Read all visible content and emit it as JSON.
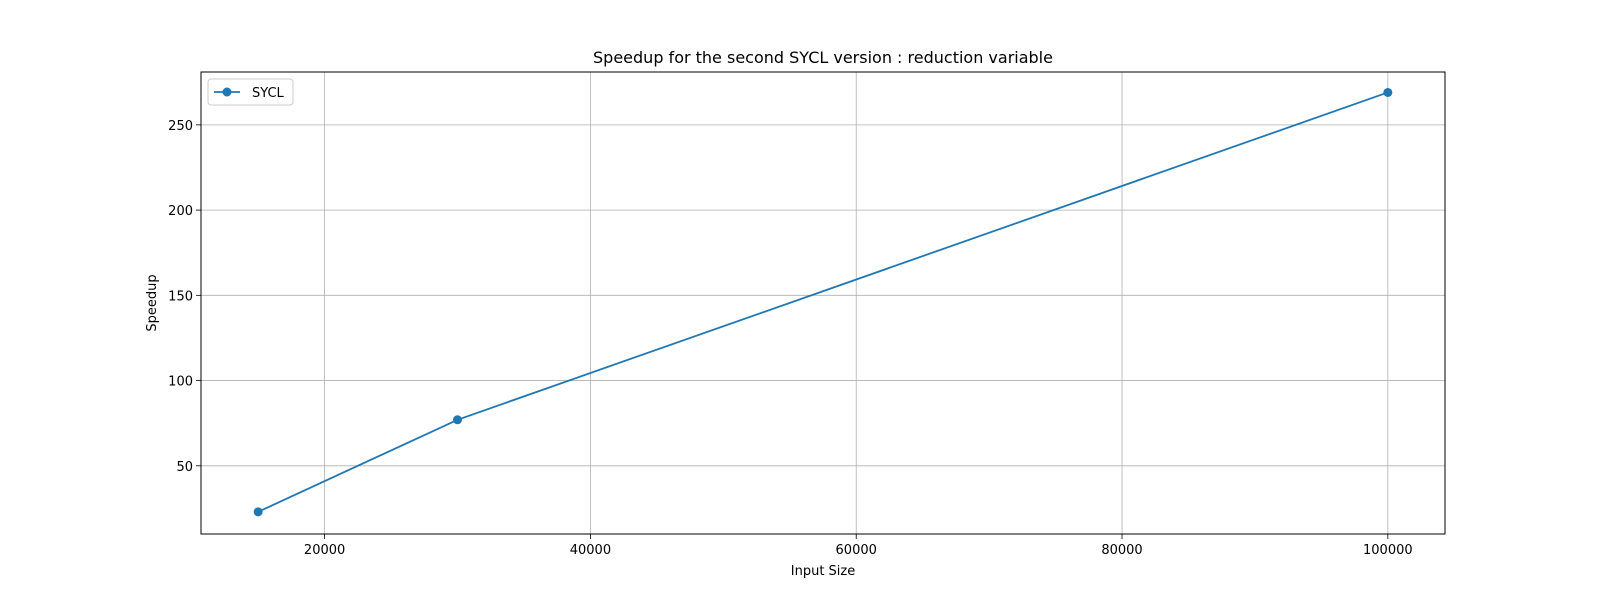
{
  "chart_data": {
    "type": "line",
    "title": "Speedup for the second SYCL version : reduction variable",
    "xlabel": "Input Size",
    "ylabel": "Speedup",
    "xlim": [
      10700,
      104300
    ],
    "ylim": [
      10,
      281
    ],
    "xticks": [
      20000,
      40000,
      60000,
      80000,
      100000
    ],
    "xtick_labels": [
      "20000",
      "40000",
      "60000",
      "80000",
      "100000"
    ],
    "yticks": [
      50,
      100,
      150,
      200,
      250
    ],
    "ytick_labels": [
      "50",
      "100",
      "150",
      "200",
      "250"
    ],
    "grid": true,
    "legend_position": "upper left",
    "series": [
      {
        "name": "SYCL",
        "color": "#1f77b4",
        "marker": "circle",
        "x": [
          15000,
          30000,
          100000
        ],
        "y": [
          23,
          77,
          269
        ]
      }
    ]
  }
}
